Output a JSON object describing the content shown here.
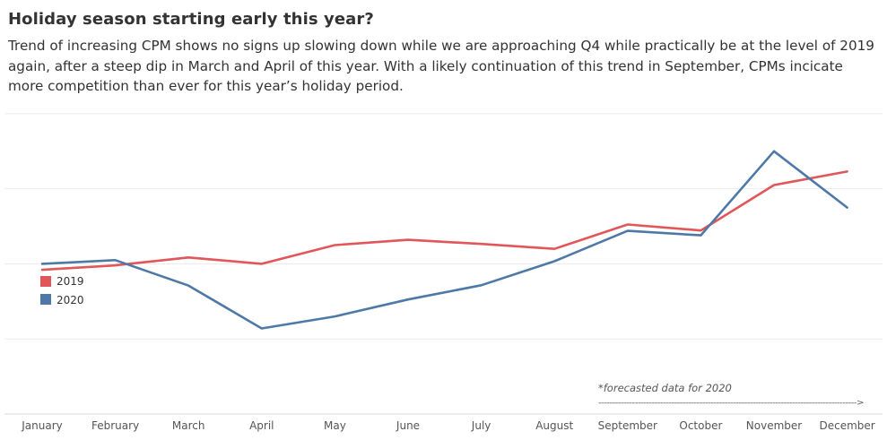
{
  "header": {
    "title": "Holiday season starting early this year?",
    "subtitle": "Trend of increasing CPM shows no signs up slowing down while we are approaching Q4 while practically be at the level of 2019 again, after a steep dip in March and April of this year. With a likely continuation of this trend in September, CPMs incicate more competition than ever for this year’s holiday period."
  },
  "chart_data": {
    "type": "line",
    "categories": [
      "January",
      "February",
      "March",
      "April",
      "May",
      "June",
      "July",
      "August",
      "September",
      "October",
      "November",
      "December"
    ],
    "series": [
      {
        "name": "2019",
        "color": "#e15759",
        "values": [
          1.84,
          1.96,
          2.17,
          2.0,
          2.5,
          2.64,
          2.53,
          2.4,
          3.05,
          2.89,
          4.1,
          4.46
        ]
      },
      {
        "name": "2020",
        "color": "#4e79a7",
        "values": [
          2.0,
          2.1,
          1.42,
          0.28,
          0.6,
          1.05,
          1.43,
          2.07,
          2.88,
          2.76,
          5.0,
          3.5
        ]
      }
    ],
    "ylim": [
      -2,
      7
    ],
    "y_gridlines": [
      0,
      2,
      4,
      6
    ],
    "y_tick_labels_visible": false,
    "xlabel": "",
    "ylabel": "",
    "grid": true,
    "legend_position": "left",
    "annotation": {
      "text": "*forecasted data for  2020",
      "arrow": "-------------------------------------------------------------------------------------------->"
    }
  }
}
